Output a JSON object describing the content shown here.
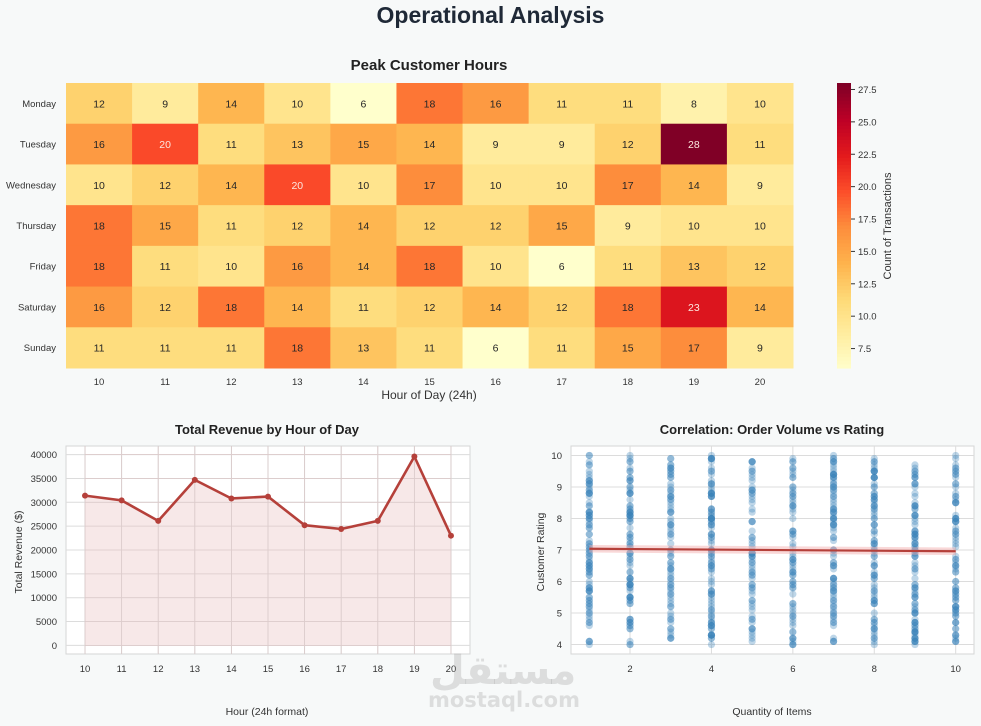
{
  "page": {
    "title": "Operational Analysis",
    "watermark_arabic": "مستقل",
    "watermark_latin": "mostaql.com"
  },
  "chart_data": [
    {
      "type": "heatmap",
      "title": "Peak Customer Hours",
      "xlabel": "Hour of Day (24h)",
      "ylabel": "",
      "x": [
        "10",
        "11",
        "12",
        "13",
        "14",
        "15",
        "16",
        "17",
        "18",
        "19",
        "20"
      ],
      "y": [
        "Monday",
        "Tuesday",
        "Wednesday",
        "Thursday",
        "Friday",
        "Saturday",
        "Sunday"
      ],
      "values": [
        [
          12,
          9,
          14,
          10,
          6,
          18,
          16,
          11,
          11,
          8,
          10
        ],
        [
          16,
          20,
          11,
          13,
          15,
          14,
          9,
          9,
          12,
          28,
          11
        ],
        [
          10,
          12,
          14,
          20,
          10,
          17,
          10,
          10,
          17,
          14,
          9
        ],
        [
          18,
          15,
          11,
          12,
          14,
          12,
          12,
          15,
          9,
          10,
          10
        ],
        [
          18,
          11,
          10,
          16,
          14,
          18,
          10,
          6,
          11,
          13,
          12
        ],
        [
          16,
          12,
          18,
          14,
          11,
          12,
          14,
          12,
          18,
          23,
          14
        ],
        [
          11,
          11,
          11,
          18,
          13,
          11,
          6,
          11,
          15,
          17,
          9
        ]
      ],
      "colormap": "YlOrRd",
      "colorbar": {
        "label": "Count of Transactions",
        "range": [
          6,
          28
        ],
        "ticks": [
          "7.5",
          "10.0",
          "12.5",
          "15.0",
          "17.5",
          "20.0",
          "22.5",
          "25.0",
          "27.5"
        ],
        "tick_values": [
          7.5,
          10,
          12.5,
          15,
          17.5,
          20,
          22.5,
          25,
          27.5
        ]
      },
      "annotated": true
    },
    {
      "type": "area",
      "title": "Total Revenue by Hour of Day",
      "xlabel": "Hour (24h format)",
      "ylabel": "Total Revenue ($)",
      "x": [
        10,
        11,
        12,
        13,
        14,
        15,
        16,
        17,
        18,
        19,
        20
      ],
      "values": [
        31400,
        30400,
        26100,
        34700,
        30800,
        31200,
        25200,
        24400,
        26100,
        39600,
        23000
      ],
      "ylim": [
        -1800,
        41800
      ],
      "yticks": [
        0,
        5000,
        10000,
        15000,
        20000,
        25000,
        30000,
        35000,
        40000
      ],
      "xticks": [
        "10",
        "11",
        "12",
        "13",
        "14",
        "15",
        "16",
        "17",
        "18",
        "19",
        "20"
      ],
      "grid": true,
      "line_color": "#b5403a",
      "fill_color": "#f6e4e4",
      "markers": true
    },
    {
      "type": "scatter",
      "title": "Correlation: Order Volume vs Rating",
      "xlabel": "Quantity of Items",
      "ylabel": "Customer Rating",
      "x_categories": [
        1,
        2,
        3,
        4,
        5,
        6,
        7,
        8,
        9,
        10
      ],
      "xlim": [
        0.55,
        10.45
      ],
      "ylim": [
        3.7,
        10.3
      ],
      "xticks": [
        "2",
        "4",
        "6",
        "8",
        "10"
      ],
      "yticks": [
        "4",
        "5",
        "6",
        "7",
        "8",
        "9",
        "10"
      ],
      "rating_range": [
        4.0,
        10.0
      ],
      "regression": {
        "x": [
          1,
          10
        ],
        "y": [
          7.04,
          6.96
        ],
        "ci_halfwidth": 0.12
      },
      "point_color": "#3b82b8",
      "line_color": "#b5403a",
      "grid": true
    }
  ]
}
